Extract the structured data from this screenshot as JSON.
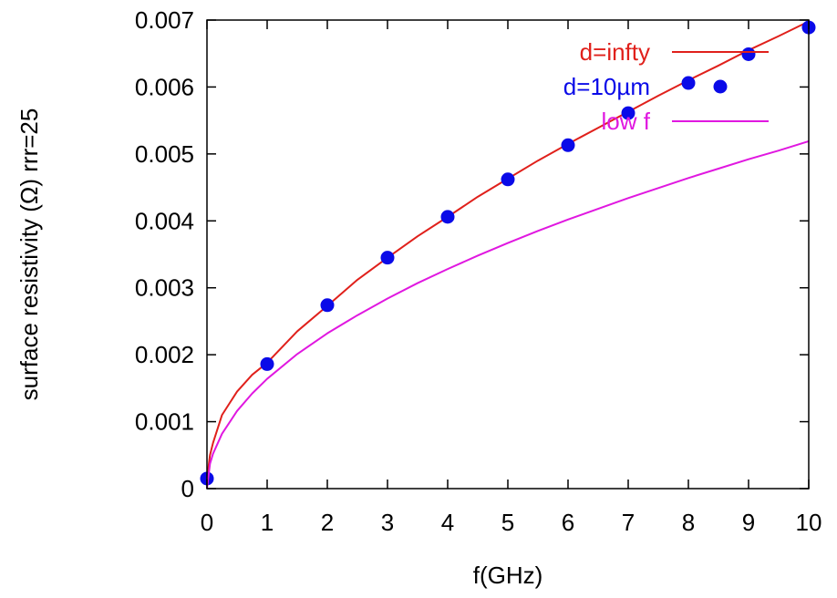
{
  "chart_data": {
    "type": "line",
    "title": "",
    "xlabel": "f(GHz)",
    "ylabel": "surface resistivity (Ω) rrr=25",
    "xlim": [
      0,
      10
    ],
    "ylim": [
      0,
      0.007
    ],
    "x_ticks": [
      0,
      1,
      2,
      3,
      4,
      5,
      6,
      7,
      8,
      9,
      10
    ],
    "x_tick_labels": [
      "0",
      "1",
      "2",
      "3",
      "4",
      "5",
      "6",
      "7",
      "8",
      "9",
      "10"
    ],
    "y_ticks": [
      0,
      0.001,
      0.002,
      0.003,
      0.004,
      0.005,
      0.006,
      0.007
    ],
    "y_tick_labels": [
      "0",
      "0.001",
      "0.002",
      "0.003",
      "0.004",
      "0.005",
      "0.006",
      "0.007"
    ],
    "grid": false,
    "legend_position": "top-right",
    "series": [
      {
        "name": "d=infty",
        "style": "line",
        "color": "#e0201b",
        "x": [
          0,
          0.05,
          0.1,
          0.25,
          0.5,
          0.75,
          1,
          1.5,
          2,
          2.5,
          3,
          3.5,
          4,
          4.5,
          5,
          5.5,
          6,
          6.5,
          7,
          7.5,
          8,
          8.5,
          9,
          9.5,
          10
        ],
        "y": [
          0.00015,
          0.0005,
          0.00068,
          0.0011,
          0.00145,
          0.0017,
          0.00188,
          0.00235,
          0.00273,
          0.00312,
          0.00345,
          0.00377,
          0.00406,
          0.00436,
          0.00463,
          0.0049,
          0.00515,
          0.00539,
          0.00563,
          0.00587,
          0.0061,
          0.00632,
          0.00655,
          0.00676,
          0.00698
        ]
      },
      {
        "name": "d=10µm",
        "style": "points",
        "color": "#0a0ae8",
        "x": [
          0,
          1,
          2,
          3,
          4,
          5,
          6,
          7,
          8,
          9,
          10
        ],
        "y": [
          0.00015,
          0.00186,
          0.00274,
          0.00345,
          0.00406,
          0.00462,
          0.00513,
          0.00561,
          0.00606,
          0.00649,
          0.00689
        ]
      },
      {
        "name": "low f",
        "style": "line",
        "color": "#e018e0",
        "x": [
          0,
          0.05,
          0.1,
          0.25,
          0.5,
          0.75,
          1,
          1.5,
          2,
          2.5,
          3,
          3.5,
          4,
          4.5,
          5,
          5.5,
          6,
          6.5,
          7,
          7.5,
          8,
          8.5,
          9,
          9.5,
          10
        ],
        "y": [
          0,
          0.00037,
          0.00052,
          0.00082,
          0.00116,
          0.00142,
          0.00164,
          0.00201,
          0.00232,
          0.00259,
          0.00284,
          0.00307,
          0.00328,
          0.00348,
          0.00367,
          0.00385,
          0.00402,
          0.00418,
          0.00434,
          0.00449,
          0.00464,
          0.00478,
          0.00492,
          0.00505,
          0.00519
        ]
      }
    ]
  }
}
